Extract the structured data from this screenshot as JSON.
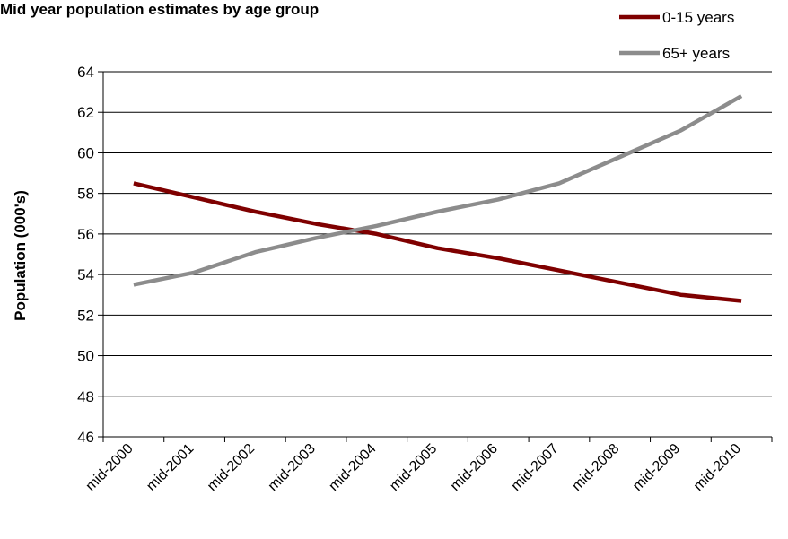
{
  "chart_data": {
    "type": "line",
    "title": "Mid year population estimates by age group",
    "xlabel": "",
    "ylabel": "Population (000's)",
    "ylim": [
      46,
      64
    ],
    "yticks": [
      46,
      48,
      50,
      52,
      54,
      56,
      58,
      60,
      62,
      64
    ],
    "grid": true,
    "legend_position": "top-right",
    "categories": [
      "mid-2000",
      "mid-2001",
      "mid-2002",
      "mid-2003",
      "mid-2004",
      "mid-2005",
      "mid-2006",
      "mid-2007",
      "mid-2008",
      "mid-2009",
      "mid-2010"
    ],
    "series": [
      {
        "name": "0-15 years",
        "color": "#7f0000",
        "values": [
          58.5,
          57.8,
          57.1,
          56.5,
          56.0,
          55.3,
          54.8,
          54.2,
          53.6,
          53.0,
          52.7
        ]
      },
      {
        "name": "65+ years",
        "color": "#8c8c8c",
        "values": [
          53.5,
          54.1,
          55.1,
          55.8,
          56.4,
          57.1,
          57.7,
          58.5,
          59.8,
          61.1,
          62.8
        ]
      }
    ]
  }
}
